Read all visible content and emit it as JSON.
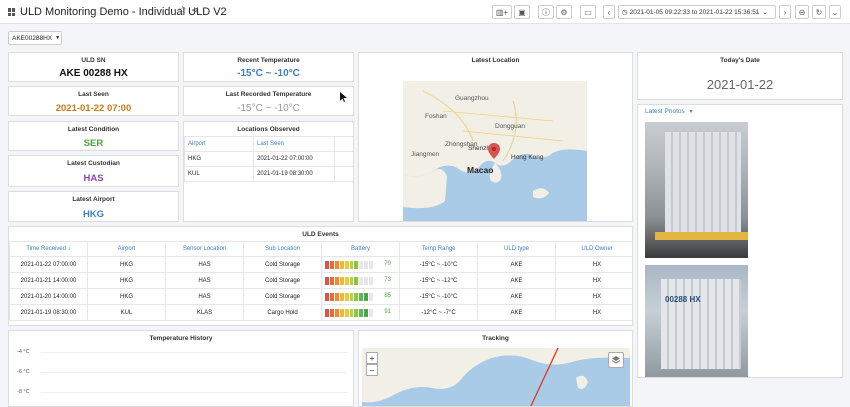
{
  "header": {
    "title": "ULD Monitoring Demo - Individual ULD V2",
    "time_range": "2021-01-05 09:22:33 to 2021-01-22 15:36:51"
  },
  "variable": {
    "selected": "AKE00288HX"
  },
  "panels": {
    "uld_sn": {
      "title": "ULD SN",
      "value": "AKE 00288 HX"
    },
    "recent_temp": {
      "title": "Recent Temperature",
      "value": "-15°C ~ -10°C"
    },
    "last_seen": {
      "title": "Last Seen",
      "value": "2021-01-22 07:00"
    },
    "last_recorded_temp": {
      "title": "Last Recorded Temperature",
      "value": "-15°C ~ -10°C"
    },
    "latest_condition": {
      "title": "Latest Condition",
      "value": "SER"
    },
    "latest_custodian": {
      "title": "Latest Custodian",
      "value": "HAS"
    },
    "latest_airport": {
      "title": "Latest Airport",
      "value": "HKG"
    },
    "latest_location": {
      "title": "Latest Location",
      "labels": {
        "guangzhou": "Guangzhou",
        "dongguan": "Dongguan",
        "foshan": "Foshan",
        "shenzhen": "Shenzhen",
        "hongkong": "Hong Kong",
        "macao": "Macao",
        "zhongshan": "Zhongshan",
        "jiangmen": "Jiangmen"
      }
    },
    "todays_date": {
      "title": "Today's Date",
      "value": "2021-01-22"
    },
    "latest_photos": {
      "title": "Latest Photos",
      "photo_text": "00288 HX"
    },
    "locations_observed": {
      "title": "Locations Observed",
      "columns": [
        "Airport",
        "Last Seen"
      ],
      "rows": [
        [
          "HKG",
          "2021-01-22 07:00:00"
        ],
        [
          "KUL",
          "2021-01-19 08:30:00"
        ]
      ]
    },
    "uld_events": {
      "title": "ULD Events",
      "columns": [
        "Time Received ↓",
        "Airport",
        "Sensor Location",
        "Sub Location",
        "Battery",
        "Temp Range",
        "ULD type",
        "ULD Owner"
      ],
      "rows": [
        {
          "time": "2021-01-22 07:00:00",
          "airport": "HKG",
          "sensor": "HAS",
          "sub": "Cold Storage",
          "battery": 70,
          "battery_label": "70",
          "temp": "-15°C ~ -10°C",
          "type": "AKE",
          "owner": "HX"
        },
        {
          "time": "2021-01-21 14:00:00",
          "airport": "HKG",
          "sensor": "HAS",
          "sub": "Cold Storage",
          "battery": 73,
          "battery_label": "73",
          "temp": "-15°C ~ -12°C",
          "type": "AKE",
          "owner": "HX"
        },
        {
          "time": "2021-01-20 14:00:00",
          "airport": "HKG",
          "sensor": "HAS",
          "sub": "Cold Storage",
          "battery": 85,
          "battery_label": "85",
          "temp": "-15°C ~ -10°C",
          "type": "AKE",
          "owner": "HX"
        },
        {
          "time": "2021-01-19 08:30:00",
          "airport": "KUL",
          "sensor": "KLAS",
          "sub": "Cargo Hold",
          "battery": 91,
          "battery_label": "91",
          "temp": "-12°C ~ -7°C",
          "type": "AKE",
          "owner": "HX"
        }
      ]
    },
    "temp_history": {
      "title": "Temperature History",
      "y_ticks": [
        "-4 °C",
        "-6 °C",
        "-8 °C"
      ]
    },
    "tracking": {
      "title": "Tracking",
      "zoom_in": "+",
      "zoom_out": "−"
    }
  },
  "colors": {
    "accent": "#3f7fc4",
    "condition": "#4aa63c",
    "custodian": "#8e44ad",
    "date_value": "#c97a1b"
  },
  "icons": [
    "grid-icon",
    "star-icon",
    "share-icon",
    "add-panel-icon",
    "save-icon",
    "settings-icon",
    "tv-icon",
    "clock-icon",
    "zoom-out-icon",
    "refresh-icon",
    "map-marker-icon",
    "layers-icon"
  ]
}
